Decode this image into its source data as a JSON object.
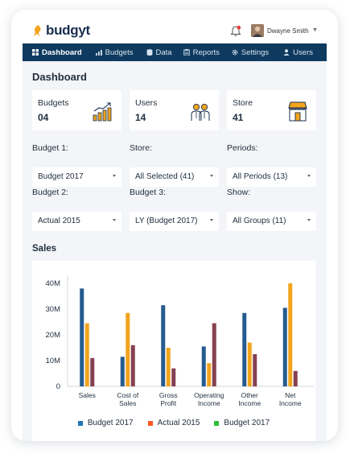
{
  "app": {
    "brand": "budgyt"
  },
  "user": {
    "name": "Dwayne Smith"
  },
  "colors": {
    "nav_bg": "#0e3a5f",
    "accent_orange": "#f2a41c",
    "bar_blue": "#255b8f",
    "bar_gold": "#f2a41c",
    "bar_maroon": "#86414f"
  },
  "nav": {
    "items": [
      {
        "label": "Dashboard",
        "icon": "grid-icon",
        "active": true
      },
      {
        "label": "Budgets",
        "icon": "bar-chart-icon"
      },
      {
        "label": "Data",
        "icon": "database-icon"
      },
      {
        "label": "Reports",
        "icon": "clipboard-icon"
      },
      {
        "label": "Settings",
        "icon": "gear-icon"
      },
      {
        "label": "Users",
        "icon": "user-icon"
      }
    ]
  },
  "page": {
    "title": "Dashboard"
  },
  "stats": [
    {
      "label": "Budgets",
      "value": "04",
      "icon": "growth-chart-icon"
    },
    {
      "label": "Users",
      "value": "14",
      "icon": "people-icon"
    },
    {
      "label": "Store",
      "value": "41",
      "icon": "storefront-icon"
    }
  ],
  "filters": [
    {
      "label": "Budget 1:",
      "value": "Budget 2017"
    },
    {
      "label": "Store:",
      "value": "All Selected (41)"
    },
    {
      "label": "Periods:",
      "value": "All Periods (13)"
    },
    {
      "label": "Budget 2:",
      "value": "Actual 2015"
    },
    {
      "label": "Budget 3:",
      "value": "LY (Budget 2017)"
    },
    {
      "label": "Show:",
      "value": "All Groups (11)"
    }
  ],
  "sales": {
    "title": "Sales"
  },
  "chart_data": {
    "type": "bar",
    "categories": [
      "Sales",
      "Cost of Sales",
      "Gross Profit",
      "Operating Income",
      "Other Income",
      "Net Income"
    ],
    "category_lines": [
      [
        "Sales"
      ],
      [
        "Cost of",
        "Sales"
      ],
      [
        "Gross",
        "Profit"
      ],
      [
        "Operating",
        "Income"
      ],
      [
        "Other",
        "Income"
      ],
      [
        "Net",
        "Income"
      ]
    ],
    "series": [
      {
        "values": [
          38,
          11.5,
          31.5,
          15.5,
          28.5,
          30.5
        ],
        "color": "#255b8f"
      },
      {
        "values": [
          24.5,
          28.5,
          15,
          9,
          17,
          40
        ],
        "color": "#f2a41c"
      },
      {
        "values": [
          11,
          16,
          7,
          24.5,
          12.5,
          6
        ],
        "color": "#86414f"
      }
    ],
    "ylim": [
      0,
      40
    ],
    "yticks": [
      0,
      10,
      20,
      30,
      40
    ],
    "ytick_labels": [
      "0",
      "10M",
      "20M",
      "30M",
      "40M"
    ],
    "grid": false,
    "legend_position": "bottom",
    "legend": [
      {
        "label": "Budget 2017",
        "color": "#1f77b4"
      },
      {
        "label": "Actual 2015",
        "color": "#ff5722"
      },
      {
        "label": "Budget 2017",
        "color": "#2cbf3a"
      }
    ]
  }
}
